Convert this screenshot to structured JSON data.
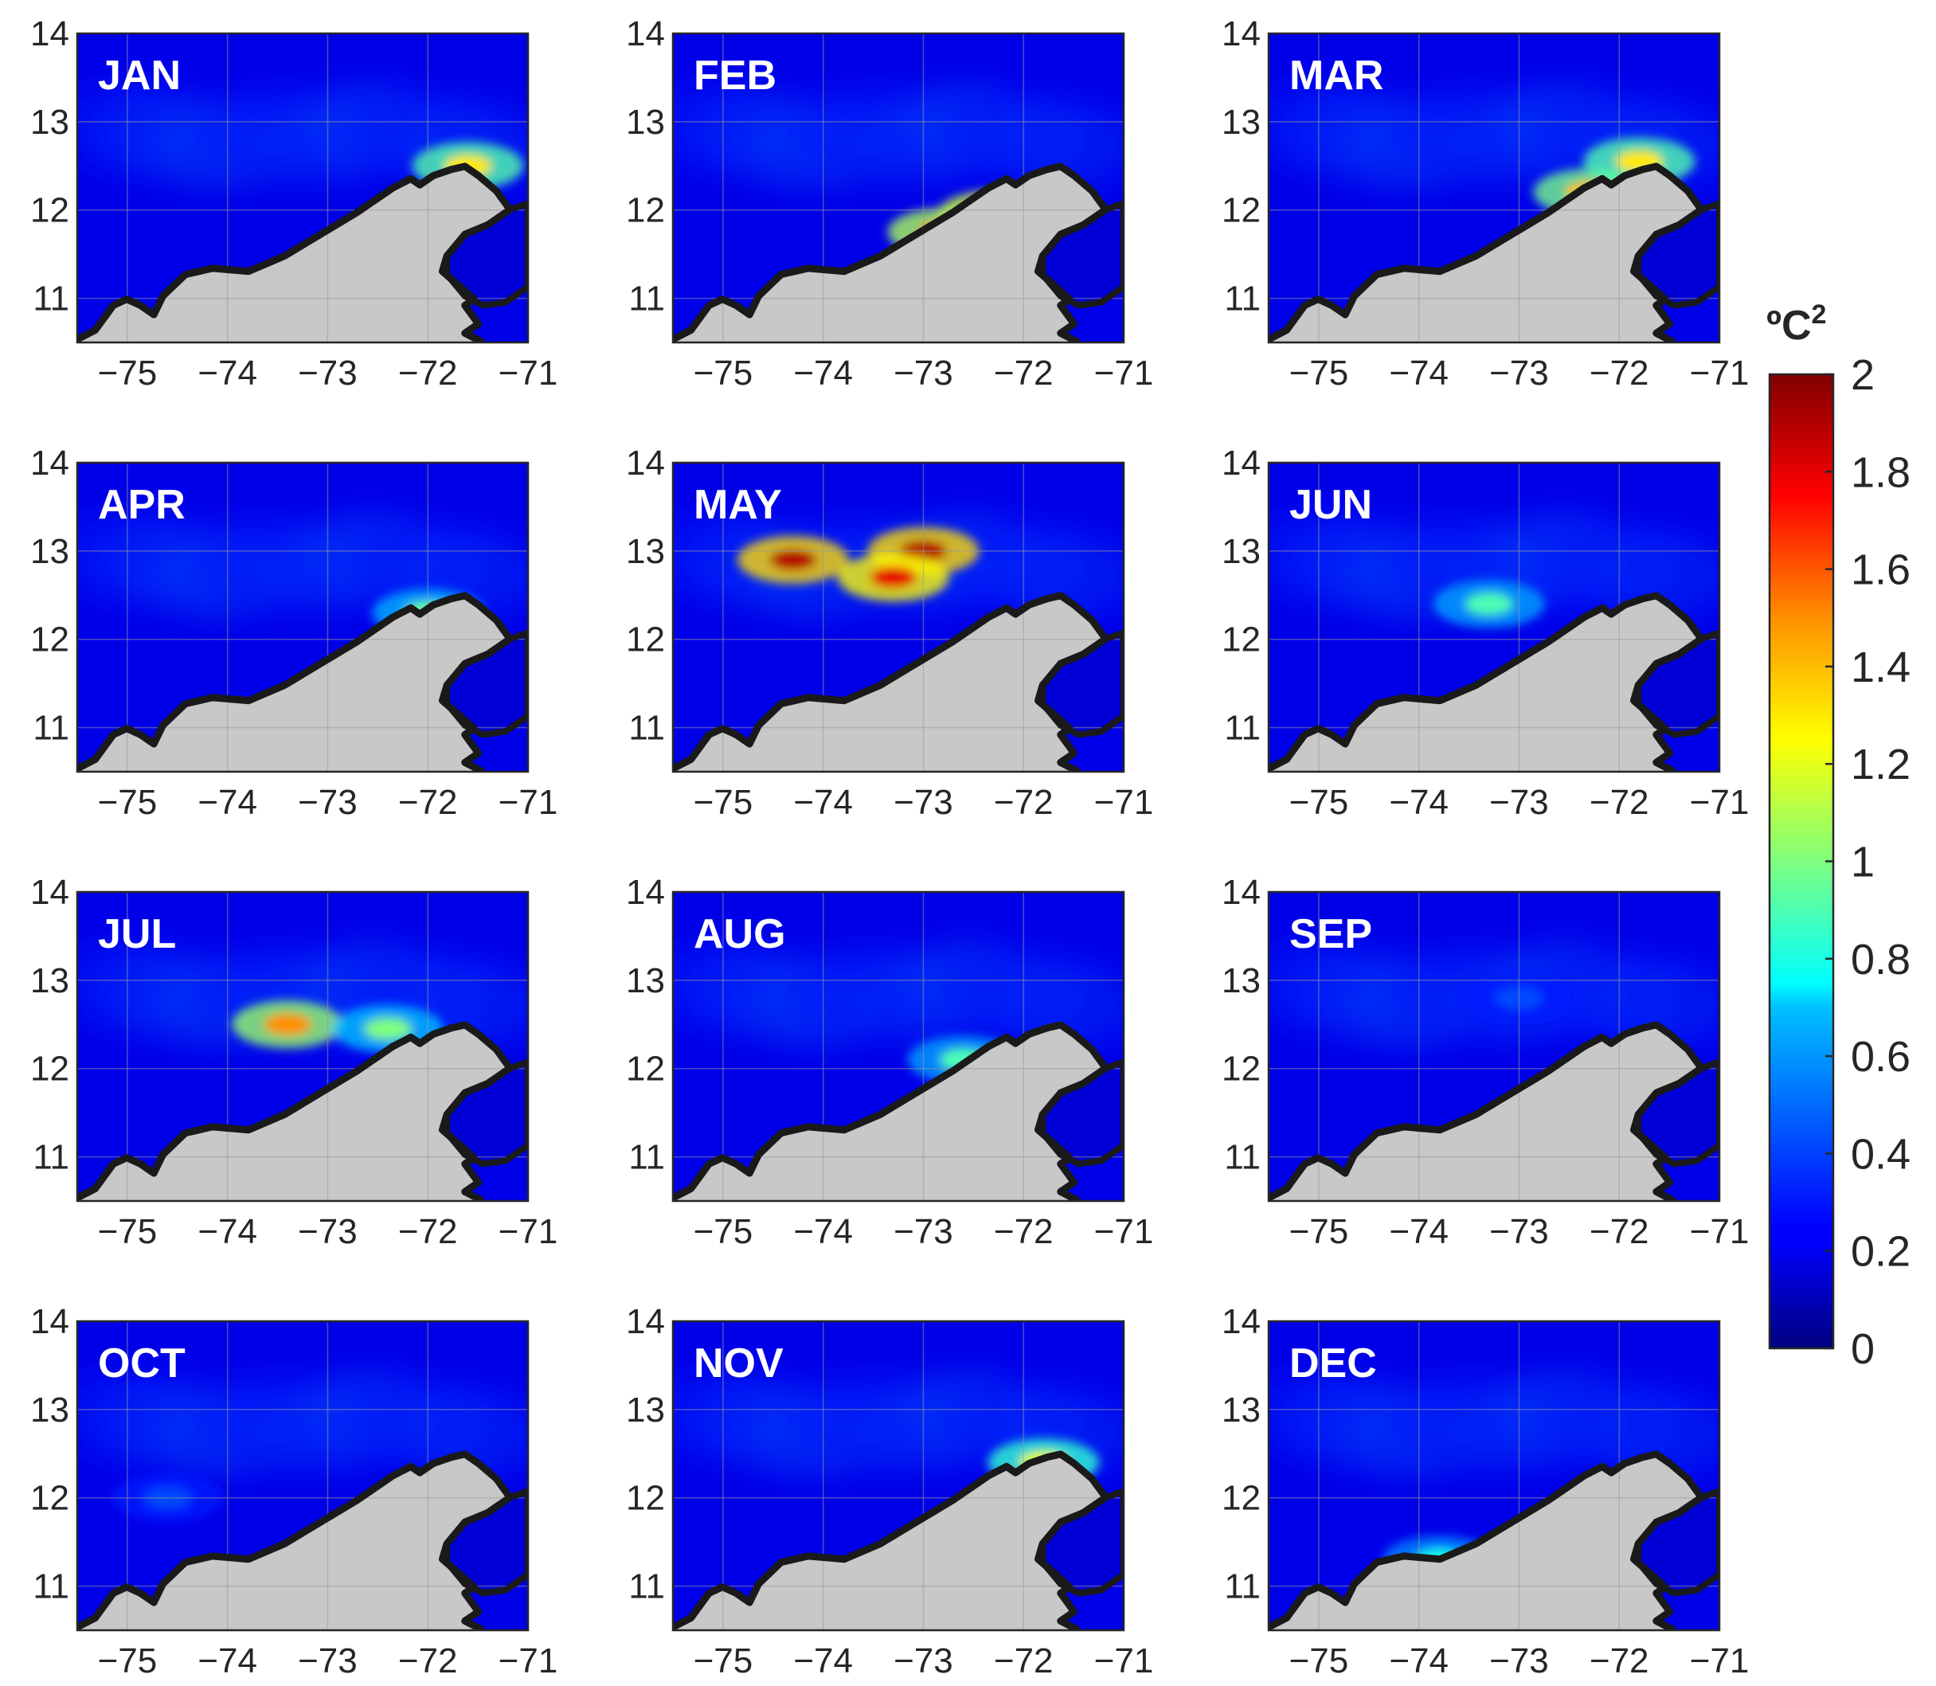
{
  "figure": {
    "panels": [
      {
        "label": "JAN"
      },
      {
        "label": "FEB"
      },
      {
        "label": "MAR"
      },
      {
        "label": "APR"
      },
      {
        "label": "MAY"
      },
      {
        "label": "JUN"
      },
      {
        "label": "JUL"
      },
      {
        "label": "AUG"
      },
      {
        "label": "SEP"
      },
      {
        "label": "OCT"
      },
      {
        "label": "NOV"
      },
      {
        "label": "DEC"
      }
    ],
    "x_ticks": [
      "−75",
      "−74",
      "−73",
      "−72",
      "−71"
    ],
    "y_ticks": [
      "14",
      "13",
      "12",
      "11"
    ],
    "x_range": [
      -75.5,
      -71
    ],
    "y_range": [
      10.5,
      14
    ],
    "land_color": "#c8c8c8",
    "coast_color": "#1a1a1a",
    "colorbar": {
      "unit_base": "ºC",
      "unit_sup": "2",
      "min": 0,
      "max": 2,
      "ticks": [
        "0",
        "0.2",
        "0.4",
        "0.6",
        "0.8",
        "1",
        "1.2",
        "1.4",
        "1.6",
        "1.8",
        "2"
      ],
      "colormap": "jet"
    }
  },
  "chart_data": {
    "type": "heatmap",
    "variable_unit": "ºC²",
    "color_range": [
      0,
      2
    ],
    "panel_hotspots": {
      "JAN": [
        {
          "lon": -71.6,
          "lat": 12.5,
          "value": 1.3
        }
      ],
      "FEB": [
        {
          "lon": -72.3,
          "lat": 11.95,
          "value": 1.65
        },
        {
          "lon": -72.8,
          "lat": 11.75,
          "value": 1.55
        }
      ],
      "MAR": [
        {
          "lon": -72.3,
          "lat": 12.2,
          "value": 1.4
        },
        {
          "lon": -71.8,
          "lat": 12.55,
          "value": 1.3
        }
      ],
      "APR": [
        {
          "lon": -72.0,
          "lat": 12.3,
          "value": 0.95
        }
      ],
      "MAY": [
        {
          "lon": -74.3,
          "lat": 12.9,
          "value": 1.9
        },
        {
          "lon": -73.0,
          "lat": 13.0,
          "value": 1.9
        },
        {
          "lon": -73.3,
          "lat": 12.7,
          "value": 1.8
        }
      ],
      "JUN": [
        {
          "lon": -73.3,
          "lat": 12.4,
          "value": 0.9
        }
      ],
      "JUL": [
        {
          "lon": -73.4,
          "lat": 12.5,
          "value": 1.5
        },
        {
          "lon": -72.4,
          "lat": 12.45,
          "value": 1.0
        }
      ],
      "AUG": [
        {
          "lon": -72.6,
          "lat": 12.1,
          "value": 0.9
        }
      ],
      "SEP": [
        {
          "lon": -73.0,
          "lat": 12.8,
          "value": 0.4
        }
      ],
      "OCT": [
        {
          "lon": -74.6,
          "lat": 12.0,
          "value": 0.4
        }
      ],
      "NOV": [
        {
          "lon": -71.8,
          "lat": 12.4,
          "value": 1.2
        }
      ],
      "DEC": [
        {
          "lon": -73.8,
          "lat": 11.3,
          "value": 0.8
        }
      ]
    }
  }
}
